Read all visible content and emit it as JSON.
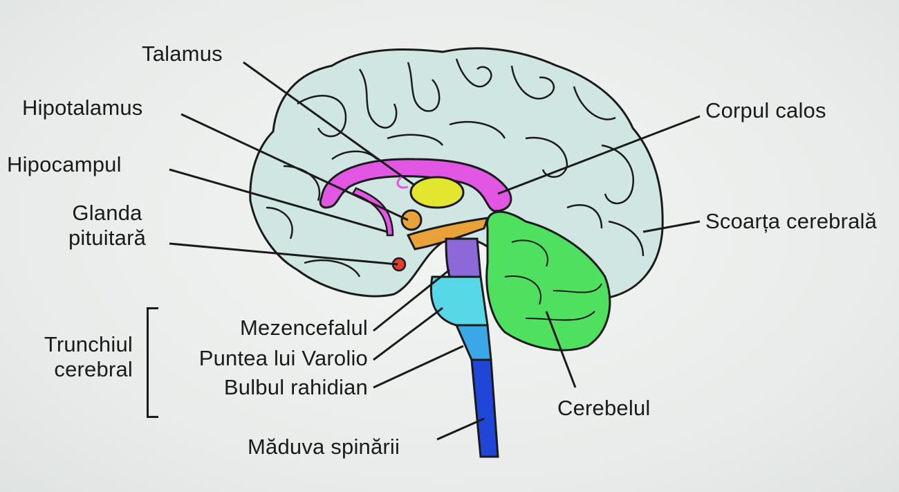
{
  "labels": {
    "talamus": "Talamus",
    "hipotalamus": "Hipotalamus",
    "hipocampul": "Hipocampul",
    "glanda_line1": "Glanda",
    "glanda_line2": "pituitară",
    "corpul_calos": "Corpul calos",
    "scoarta": "Scoarța cerebrală",
    "trunchiul_line1": "Trunchiul",
    "trunchiul_line2": "cerebral",
    "mezencefalul": "Mezencefalul",
    "puntea": "Puntea lui Varolio",
    "bulbul": "Bulbul rahidian",
    "cerebelul": "Cerebelul",
    "maduva": "Măduva spinării"
  },
  "colors": {
    "cortex": "#cfe6e3",
    "outline": "#1a1a1a",
    "corpus_callosum": "#e157e4",
    "thalamus": "#e3e62e",
    "hypothalamus": "#e9a23a",
    "pituitary": "#e43b2c",
    "midbrain": "#8c68d8",
    "pons": "#56d8e8",
    "medulla": "#3aa8e6",
    "spinal_cord": "#2046d8",
    "cerebellum": "#4fe060"
  }
}
